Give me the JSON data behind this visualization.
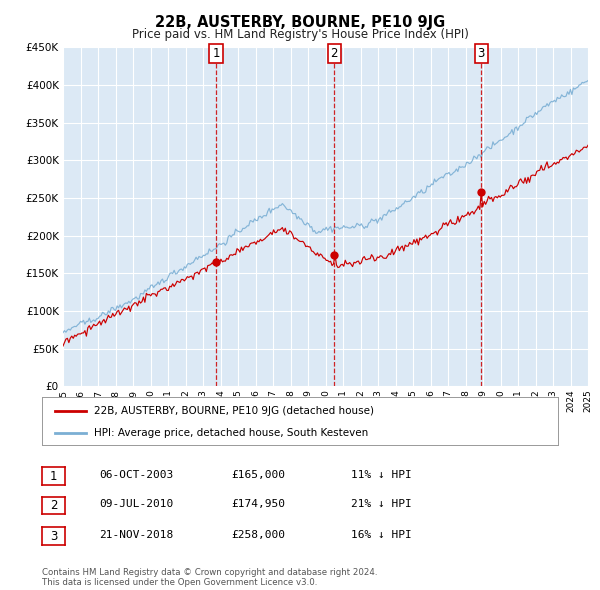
{
  "title": "22B, AUSTERBY, BOURNE, PE10 9JG",
  "subtitle": "Price paid vs. HM Land Registry's House Price Index (HPI)",
  "hpi_label": "HPI: Average price, detached house, South Kesteven",
  "price_label": "22B, AUSTERBY, BOURNE, PE10 9JG (detached house)",
  "transactions": [
    {
      "num": 1,
      "date": "06-OCT-2003",
      "price": 165000,
      "pct": "11%",
      "dir": "↓",
      "year": 2003.75
    },
    {
      "num": 2,
      "date": "09-JUL-2010",
      "price": 174950,
      "pct": "21%",
      "dir": "↓",
      "year": 2010.5
    },
    {
      "num": 3,
      "date": "21-NOV-2018",
      "price": 258000,
      "pct": "16%",
      "dir": "↓",
      "year": 2018.9
    }
  ],
  "ylim": [
    0,
    450000
  ],
  "yticks": [
    0,
    50000,
    100000,
    150000,
    200000,
    250000,
    300000,
    350000,
    400000,
    450000
  ],
  "x_start_year": 1995,
  "x_end_year": 2025,
  "plot_bg_color": "#dce9f5",
  "grid_color": "#ffffff",
  "hpi_color": "#7bafd4",
  "price_color": "#cc0000",
  "dot_color": "#cc0000",
  "footnote": "Contains HM Land Registry data © Crown copyright and database right 2024.\nThis data is licensed under the Open Government Licence v3.0."
}
